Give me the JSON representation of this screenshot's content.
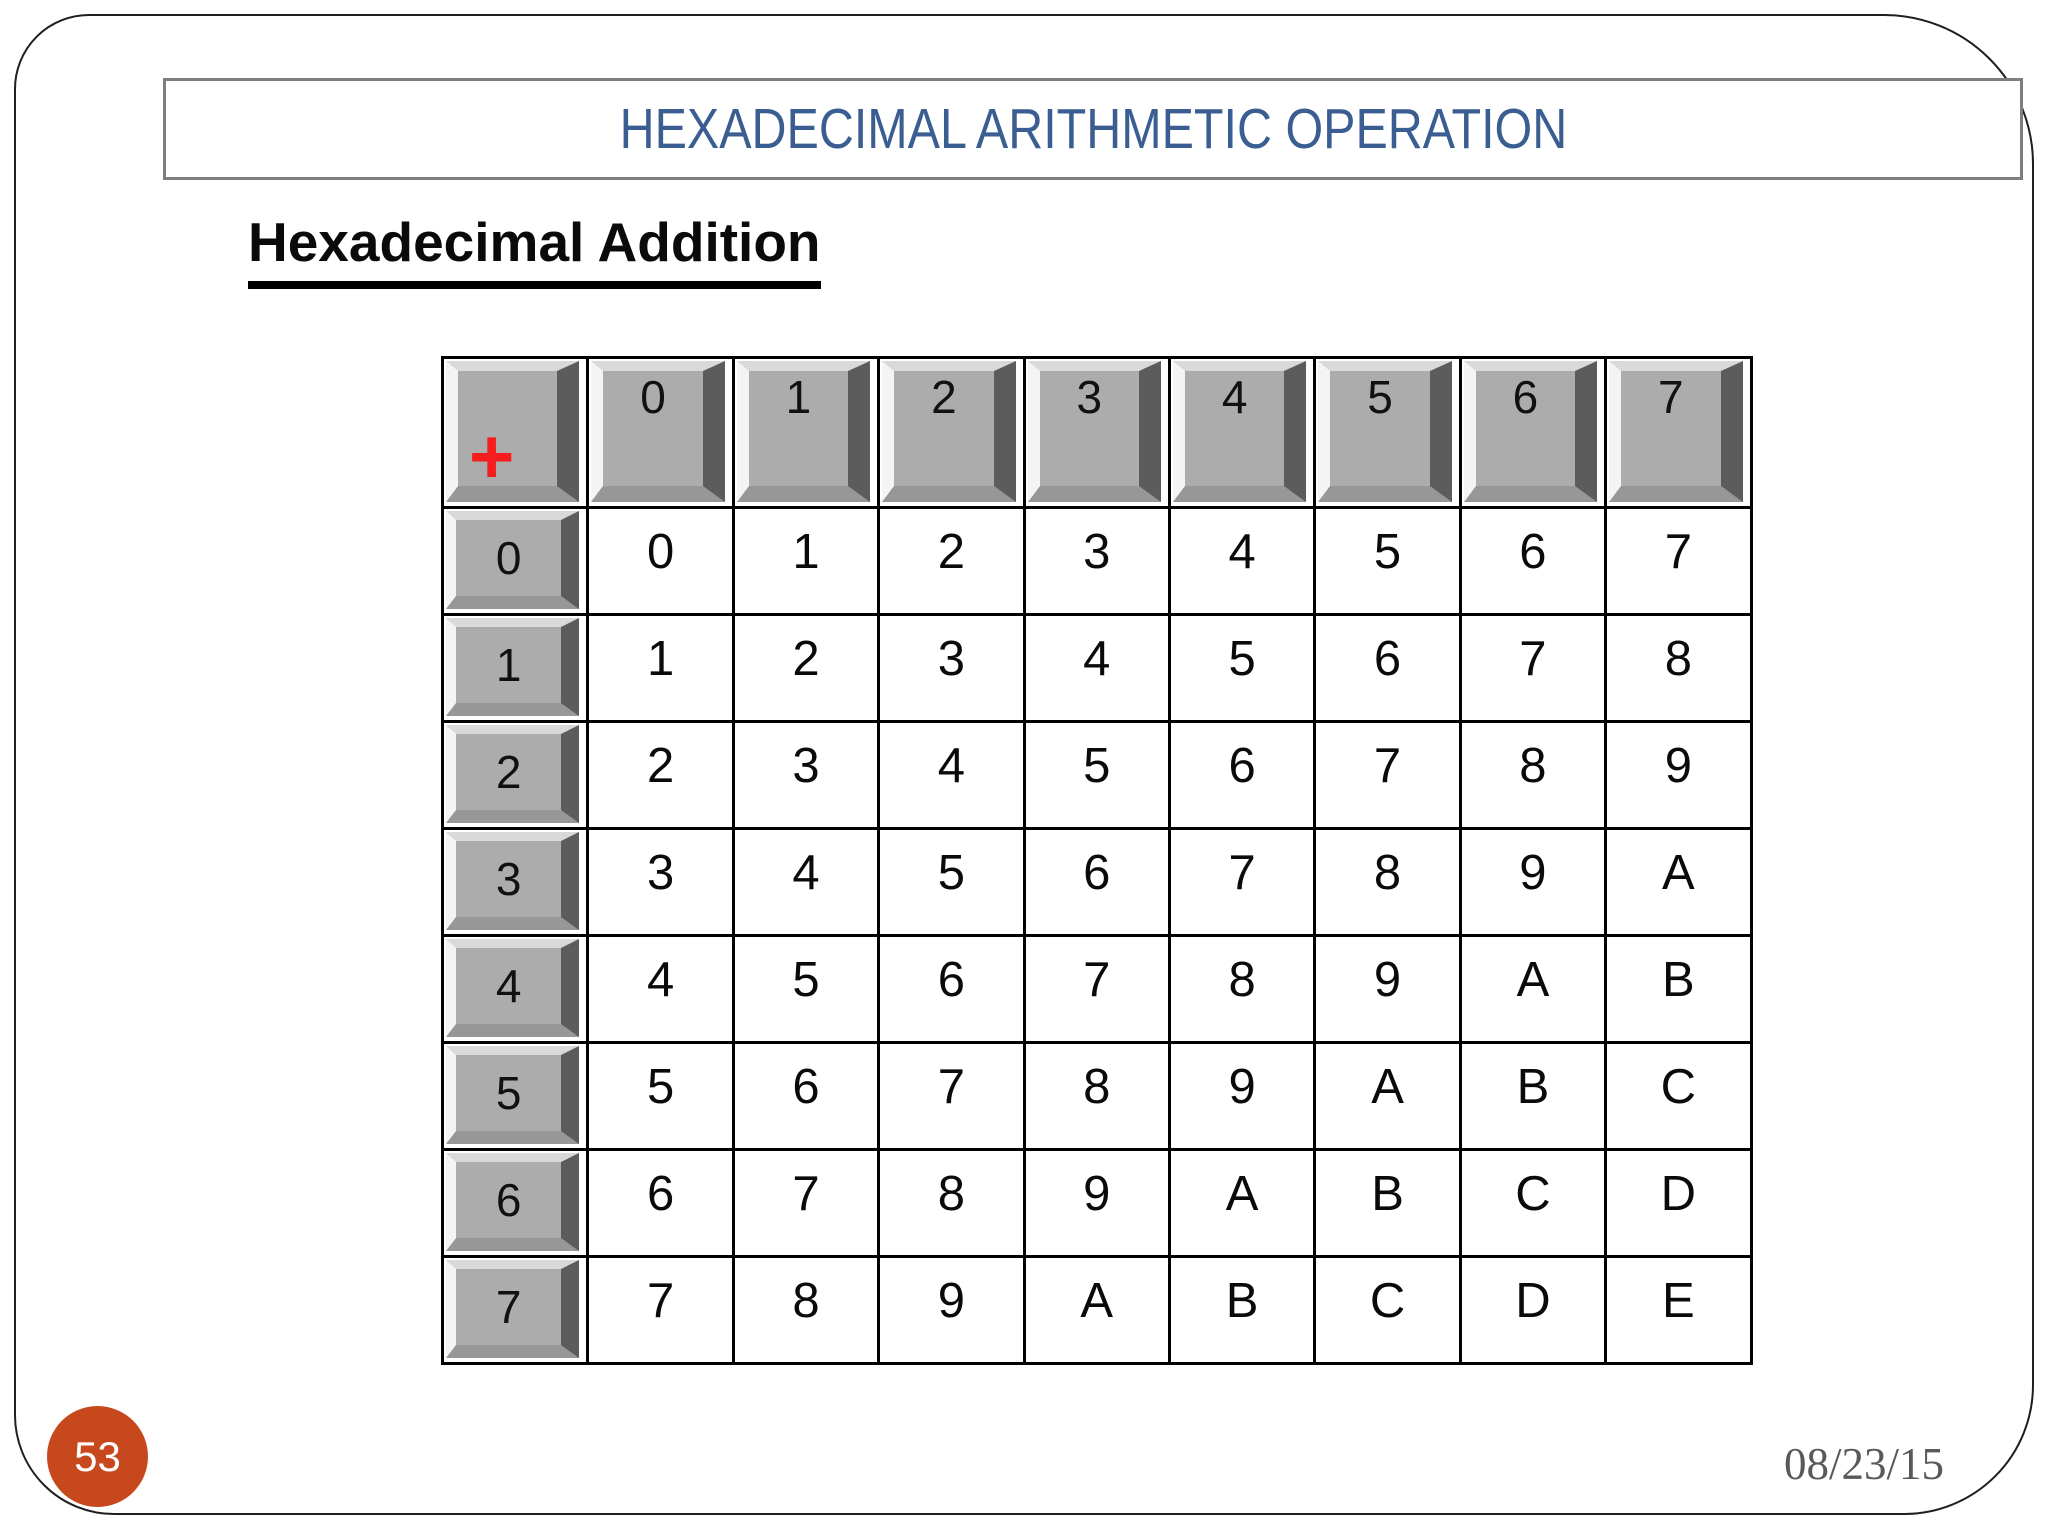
{
  "slide": {
    "title": "HEXADECIMAL ARITHMETIC OPERATION",
    "subtitle": "Hexadecimal Addition",
    "page_number": "53",
    "date": "08/23/15"
  },
  "table": {
    "operator": "+",
    "col_headers": [
      "0",
      "1",
      "2",
      "3",
      "4",
      "5",
      "6",
      "7"
    ],
    "row_headers": [
      "0",
      "1",
      "2",
      "3",
      "4",
      "5",
      "6",
      "7"
    ],
    "rows": [
      [
        "0",
        "1",
        "2",
        "3",
        "4",
        "5",
        "6",
        "7"
      ],
      [
        "1",
        "2",
        "3",
        "4",
        "5",
        "6",
        "7",
        "8"
      ],
      [
        "2",
        "3",
        "4",
        "5",
        "6",
        "7",
        "8",
        "9"
      ],
      [
        "3",
        "4",
        "5",
        "6",
        "7",
        "8",
        "9",
        "A"
      ],
      [
        "4",
        "5",
        "6",
        "7",
        "8",
        "9",
        "A",
        "B"
      ],
      [
        "5",
        "6",
        "7",
        "8",
        "9",
        "A",
        "B",
        "C"
      ],
      [
        "6",
        "7",
        "8",
        "9",
        "A",
        "B",
        "C",
        "D"
      ],
      [
        "7",
        "8",
        "9",
        "A",
        "B",
        "C",
        "D",
        "E"
      ]
    ]
  },
  "colors": {
    "title_blue": "#3a5e91",
    "plus_red": "#f51d1d",
    "badge_orange": "#c8481d",
    "key_gray": "#acacac",
    "key_shadow": "#5c5c5c",
    "key_highlight": "#f4f4f4",
    "date_gray": "#595959"
  }
}
